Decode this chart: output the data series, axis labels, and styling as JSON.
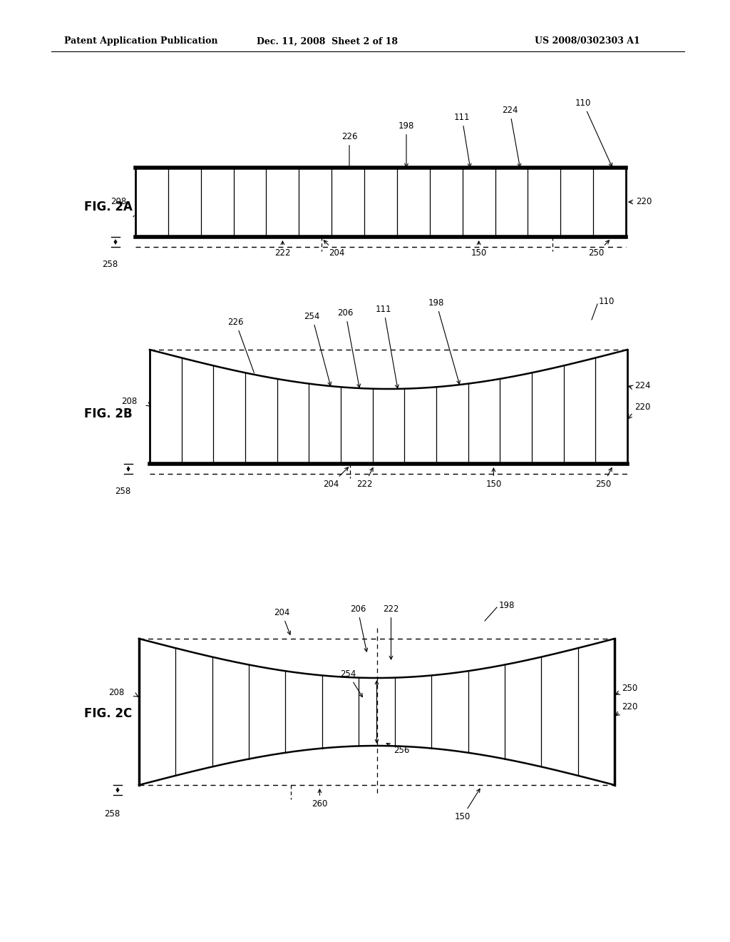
{
  "header_left": "Patent Application Publication",
  "header_mid": "Dec. 11, 2008  Sheet 2 of 18",
  "header_right": "US 2008/0302303 A1",
  "bg_color": "#ffffff",
  "lc": "#000000",
  "fs_anno": 8.5,
  "fs_fig": 12,
  "fs_header": 9
}
